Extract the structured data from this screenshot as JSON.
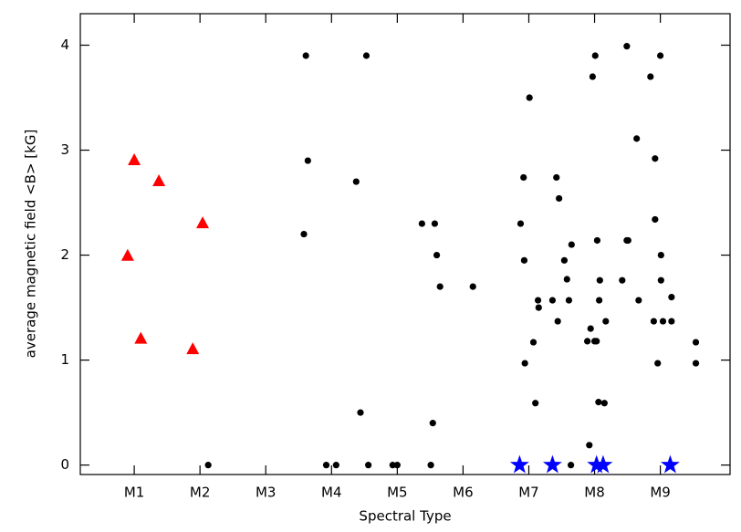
{
  "chart_data": {
    "type": "scatter",
    "x_label": "Spectral Type",
    "y_label": "average magnetic field <B> [kG]",
    "xlim": [
      0.18,
      10.06
    ],
    "ylim": [
      -0.09,
      4.3
    ],
    "xticks": [
      {
        "value": 1,
        "label": "M1"
      },
      {
        "value": 2,
        "label": "M2"
      },
      {
        "value": 3,
        "label": "M3"
      },
      {
        "value": 4,
        "label": "M4"
      },
      {
        "value": 5,
        "label": "M5"
      },
      {
        "value": 6,
        "label": "M6"
      },
      {
        "value": 7,
        "label": "M7"
      },
      {
        "value": 8,
        "label": "M8"
      },
      {
        "value": 9,
        "label": "M9"
      }
    ],
    "yticks": [
      0,
      1,
      2,
      3,
      4
    ],
    "series": [
      {
        "color": "#ff0000",
        "marker": "triangle",
        "x": [
          1.0,
          1.375,
          2.04,
          0.9,
          1.1,
          1.89
        ],
        "values": [
          2.9,
          2.7,
          2.3,
          1.99,
          1.2,
          1.1
        ]
      },
      {
        "color": "#000000",
        "marker": "circle",
        "x": [
          2.125,
          3.61,
          3.64,
          3.58,
          3.92,
          4.07,
          4.375,
          4.44,
          4.56,
          4.53,
          4.93,
          5.0,
          5.375,
          5.57,
          5.6,
          5.65,
          5.54,
          5.51,
          6.15,
          6.875,
          6.92,
          6.93,
          6.94,
          7.01,
          7.07,
          7.1,
          7.14,
          7.15,
          7.36,
          7.42,
          7.46,
          7.44,
          7.54,
          7.58,
          7.61,
          7.65,
          7.64,
          7.89,
          7.92,
          7.94,
          7.97,
          8.0,
          8.01,
          8.03,
          8.04,
          8.06,
          8.08,
          8.07,
          8.15,
          8.17,
          8.42,
          8.49,
          8.49,
          8.51,
          8.64,
          8.67,
          8.85,
          8.9,
          8.92,
          8.92,
          8.96,
          9.0,
          9.01,
          9.01,
          9.04,
          9.17,
          9.17,
          9.54,
          9.54
        ],
        "values": [
          0,
          3.9,
          2.9,
          2.2,
          0,
          0,
          2.7,
          0.5,
          0,
          3.9,
          0,
          0,
          2.3,
          2.3,
          2.0,
          1.7,
          0.4,
          0,
          1.7,
          2.3,
          2.74,
          1.95,
          0.97,
          3.5,
          1.17,
          0.59,
          1.57,
          1.5,
          1.57,
          2.74,
          2.54,
          1.37,
          1.95,
          1.77,
          1.57,
          2.1,
          0,
          1.18,
          0.19,
          1.3,
          3.7,
          1.18,
          3.9,
          1.18,
          2.14,
          0.6,
          1.76,
          1.57,
          0.59,
          1.37,
          1.76,
          3.99,
          2.14,
          2.14,
          3.11,
          1.57,
          3.7,
          1.37,
          2.34,
          2.92,
          0.97,
          3.9,
          1.76,
          2.0,
          1.37,
          1.6,
          1.37,
          1.17,
          0.97
        ]
      },
      {
        "color": "#0000ff",
        "marker": "star",
        "x": [
          6.86,
          7.36,
          8.03,
          8.13,
          9.15
        ],
        "values": [
          0,
          0,
          0,
          0,
          0
        ]
      }
    ]
  }
}
